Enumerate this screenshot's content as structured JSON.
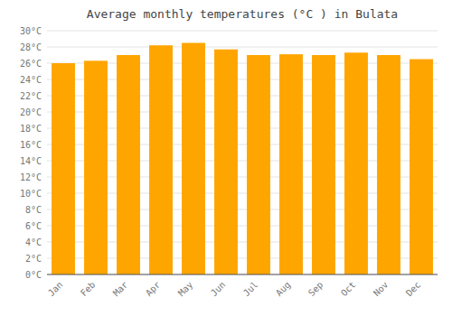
{
  "chart_data": {
    "type": "bar",
    "title": "Average monthly temperatures (°C ) in Bulata",
    "categories": [
      "Jan",
      "Feb",
      "Mar",
      "Apr",
      "May",
      "Jun",
      "Jul",
      "Aug",
      "Sep",
      "Oct",
      "Nov",
      "Dec"
    ],
    "values": [
      26.0,
      26.3,
      27.0,
      28.2,
      28.5,
      27.7,
      27.0,
      27.1,
      27.0,
      27.3,
      27.0,
      26.5
    ],
    "color": "#FFA500",
    "ylim": [
      0,
      30
    ],
    "yticks": [
      {
        "value": 0,
        "label": "0°C"
      },
      {
        "value": 2,
        "label": "2°C"
      },
      {
        "value": 4,
        "label": "4°C"
      },
      {
        "value": 6,
        "label": "6°C"
      },
      {
        "value": 8,
        "label": "8°C"
      },
      {
        "value": 10,
        "label": "10°C"
      },
      {
        "value": 12,
        "label": "12°C"
      },
      {
        "value": 14,
        "label": "14°C"
      },
      {
        "value": 16,
        "label": "16°C"
      },
      {
        "value": 18,
        "label": "18°C"
      },
      {
        "value": 20,
        "label": "20°C"
      },
      {
        "value": 22,
        "label": "22°C"
      },
      {
        "value": 24,
        "label": "24°C"
      },
      {
        "value": 26,
        "label": "26°C"
      },
      {
        "value": 28,
        "label": "28°C"
      },
      {
        "value": 30,
        "label": "30°C"
      }
    ],
    "grid": true
  }
}
